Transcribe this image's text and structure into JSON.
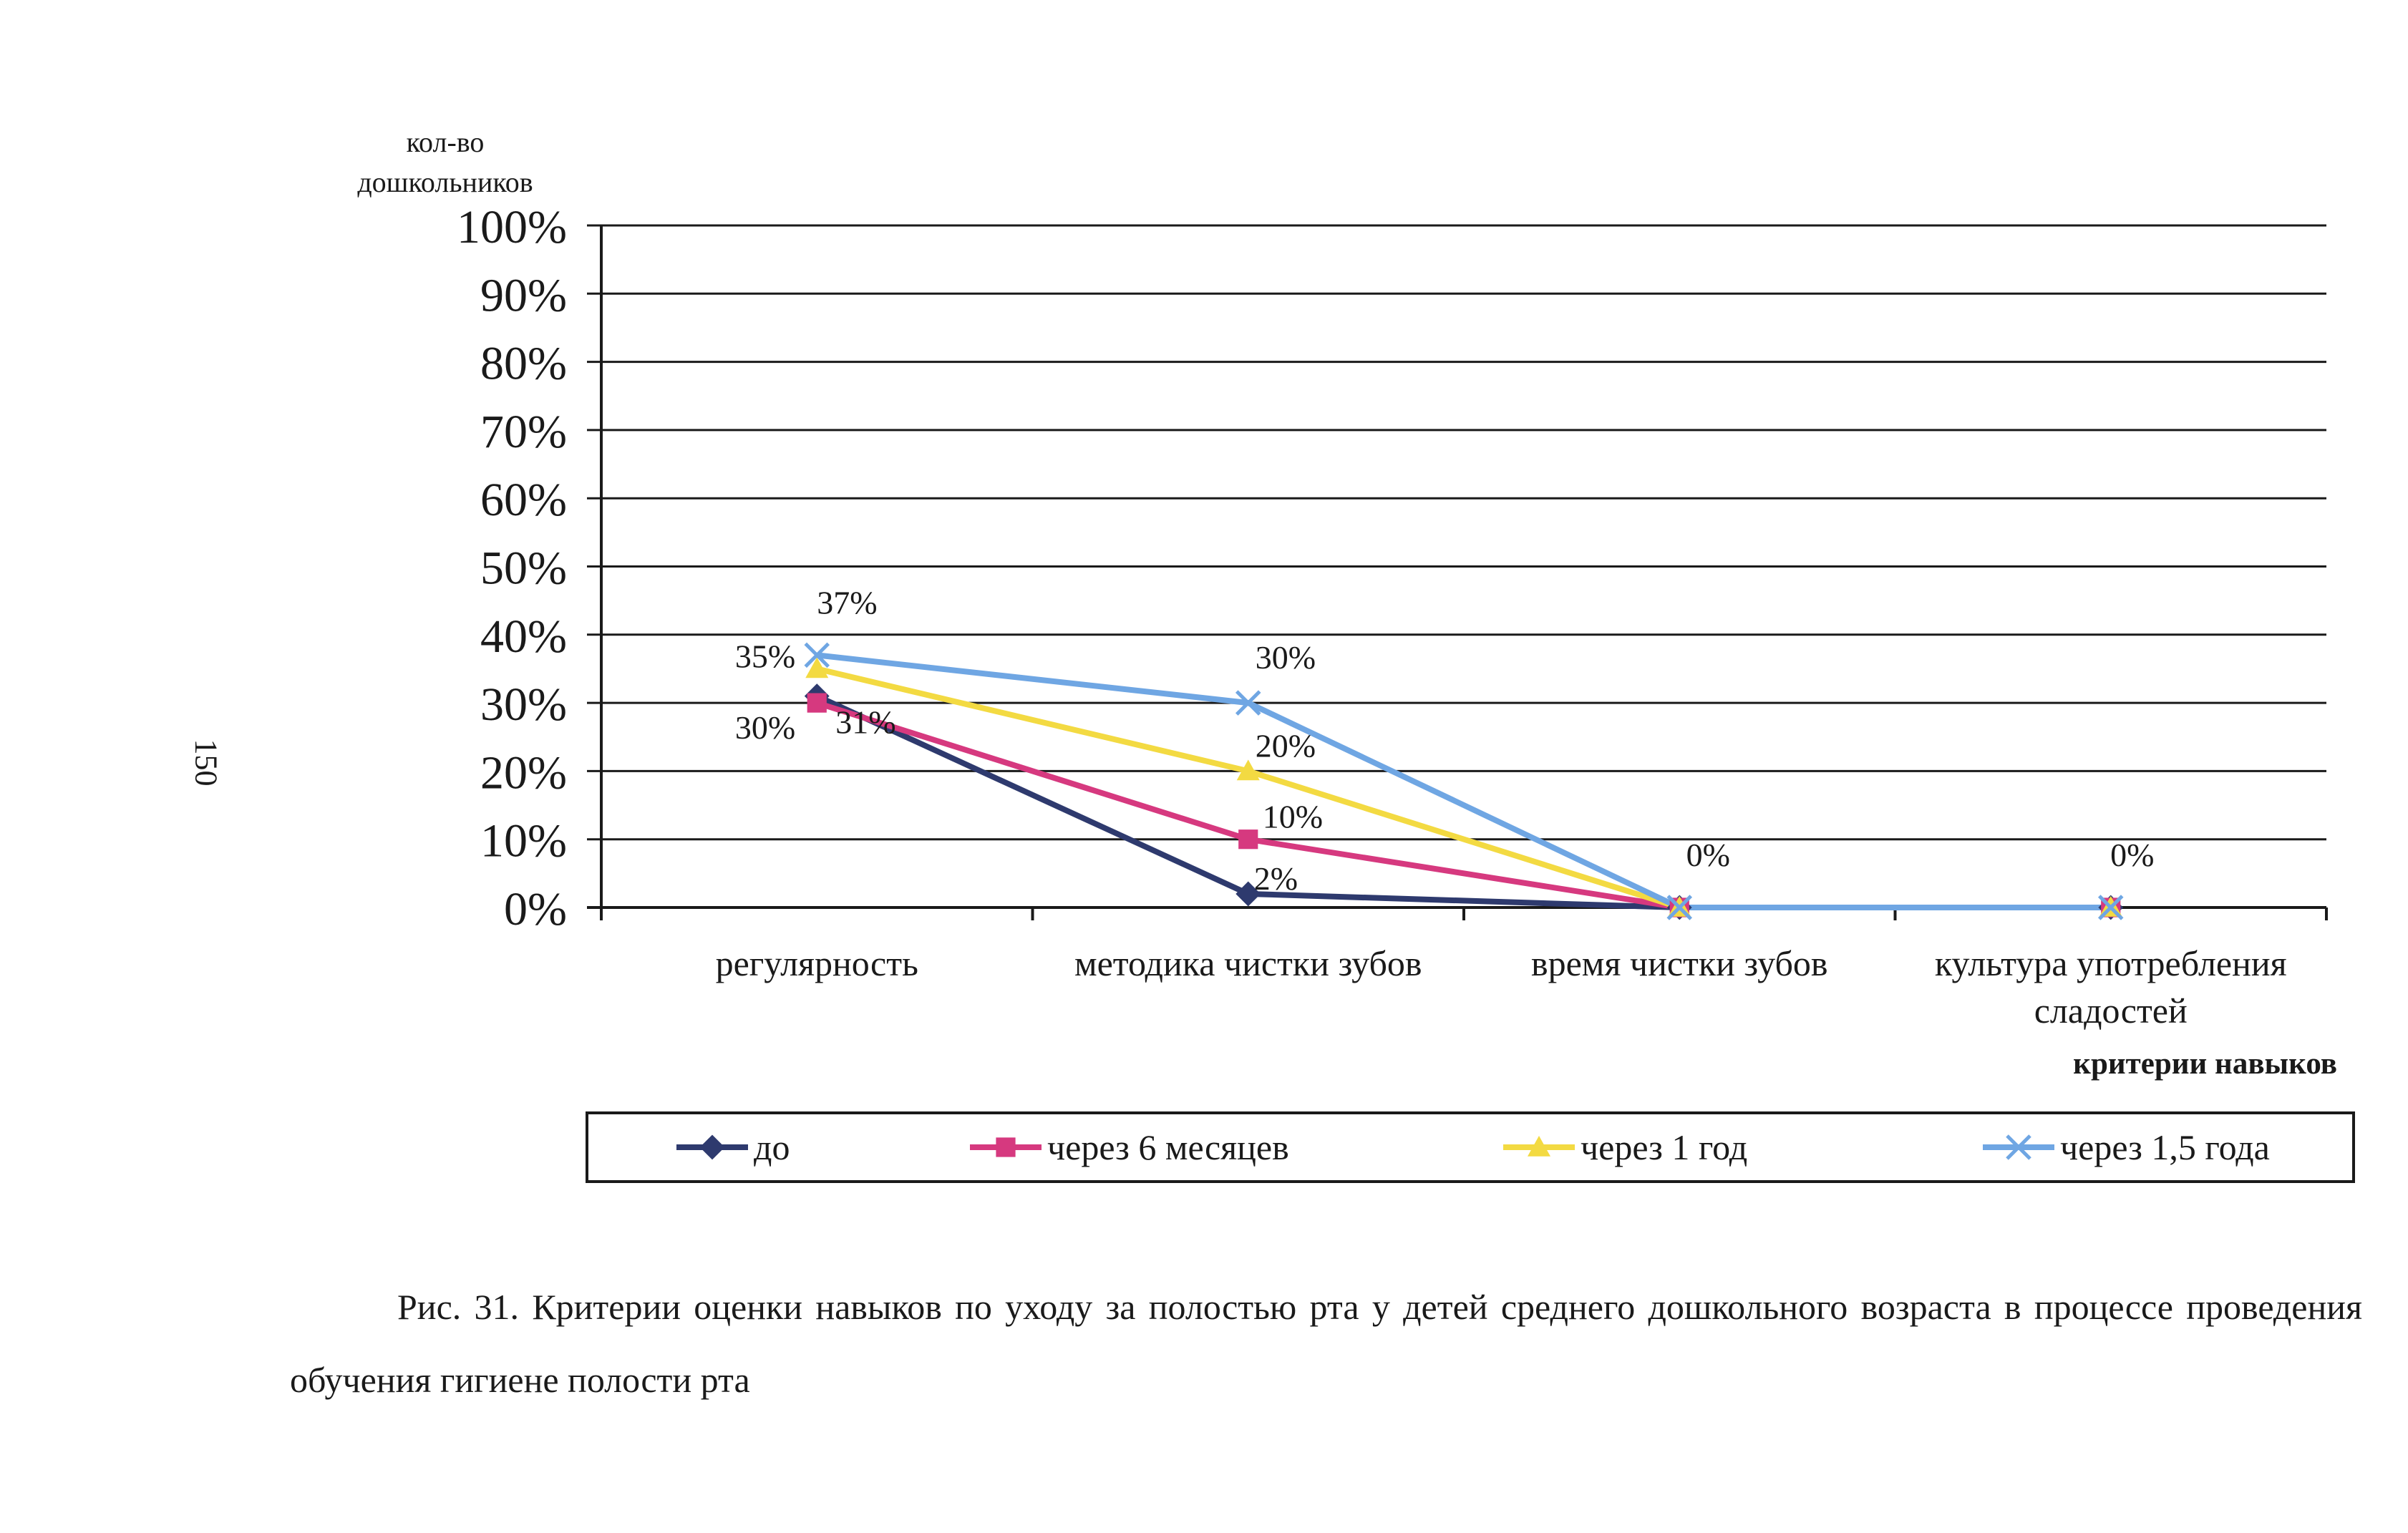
{
  "page_number": "150",
  "caption": "Рис. 31. Критерии оценки навыков по уходу за полостью рта у детей среднего дошкольного возраста в процессе проведения обучения гигиене полости рта",
  "colors": {
    "series": [
      "#2e3a6e",
      "#d6397f",
      "#f3da42",
      "#6fa6e3"
    ],
    "grid": "#1a1a1a"
  },
  "chart_data": {
    "type": "line",
    "title": "",
    "ylabel": "кол-во дошкольников",
    "ylabel_lines": [
      "кол-во",
      "дошкольников"
    ],
    "xlabel": "критерии навыков",
    "ylim": [
      0,
      100
    ],
    "yticks": [
      "0%",
      "10%",
      "20%",
      "30%",
      "40%",
      "50%",
      "60%",
      "70%",
      "80%",
      "90%",
      "100%"
    ],
    "grid": true,
    "legend_position": "bottom",
    "categories": [
      "регулярность",
      "методика чистки зубов",
      "время чистки зубов",
      "культура употребления сладостей"
    ],
    "category_lines": [
      [
        "регулярность"
      ],
      [
        "методика чистки зубов"
      ],
      [
        "время чистки зубов"
      ],
      [
        "культура употребления",
        "сладостей"
      ]
    ],
    "series": [
      {
        "name": "до",
        "marker": "diamond",
        "values": [
          31,
          2,
          0,
          0
        ]
      },
      {
        "name": "через 6 месяцев",
        "marker": "square",
        "values": [
          30,
          10,
          0,
          0
        ]
      },
      {
        "name": "через 1 год",
        "marker": "triangle",
        "values": [
          35,
          20,
          0,
          0
        ]
      },
      {
        "name": "через 1,5 года",
        "marker": "x",
        "values": [
          37,
          30,
          0,
          0
        ]
      }
    ],
    "annotations": [
      {
        "text": "37%",
        "series": 3,
        "point": 0
      },
      {
        "text": "35%",
        "series": 2,
        "point": 0
      },
      {
        "text": "30%",
        "series": 1,
        "point": 0
      },
      {
        "text": "31%",
        "series": 0,
        "point": 0
      },
      {
        "text": "30%",
        "series": 3,
        "point": 1
      },
      {
        "text": "20%",
        "series": 2,
        "point": 1
      },
      {
        "text": "10%",
        "series": 1,
        "point": 1
      },
      {
        "text": "2%",
        "series": 0,
        "point": 1
      },
      {
        "text": "0%",
        "series": 2,
        "point": 2
      },
      {
        "text": "0%",
        "series": 2,
        "point": 3
      }
    ]
  }
}
